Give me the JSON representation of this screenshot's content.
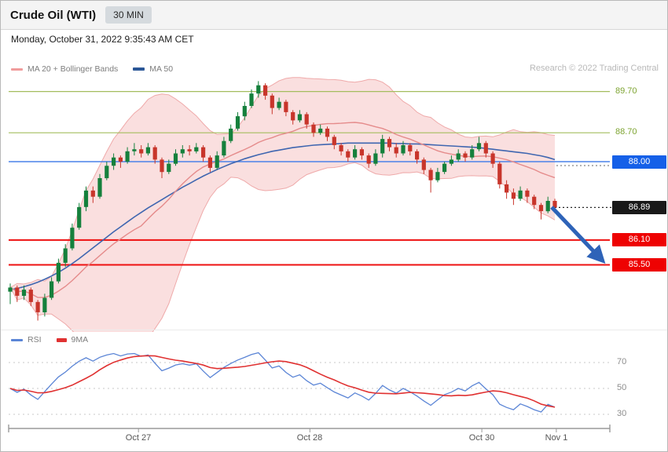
{
  "header": {
    "title": "Crude Oil (WTI)",
    "timeframe": "30 MIN",
    "datetime": "Monday, October 31, 2022 9:35:43 AM CET"
  },
  "watermark": "Research © 2022 Trading Central",
  "legend_main": {
    "ma20_label": "MA 20 + Bollinger Bands",
    "ma50_label": "MA 50"
  },
  "legend_rsi": {
    "rsi_label": "RSI",
    "ma9_label": "9MA"
  },
  "colors": {
    "up": "#15803c",
    "down": "#c8352b",
    "band_fill": "rgba(242,178,178,0.42)",
    "band_edge": "rgba(236,158,158,0.85)",
    "ma20": "#e58b8b",
    "ma50": "#3f66b0",
    "level_green": "#a4bd5e",
    "level_green_text": "#7ea432",
    "level_blue": "#4a82e8",
    "level_blue_box": "#1560e8",
    "level_red": "#ee1111",
    "support_box": "#ee0202",
    "current_box": "#191919",
    "arrow": "#2e63b8",
    "rsi_line": "#5b85d6",
    "rsi_ma": "#e03131"
  },
  "chart_data": {
    "type": "candlestick",
    "instrument": "Crude Oil (WTI)",
    "interval": "30 MIN",
    "candle_format": [
      "open",
      "high",
      "low",
      "close"
    ],
    "candles": [
      [
        84.85,
        85.05,
        84.55,
        84.95
      ],
      [
        84.95,
        85.0,
        84.6,
        84.75
      ],
      [
        84.75,
        85.0,
        84.65,
        84.9
      ],
      [
        84.9,
        84.95,
        84.5,
        84.6
      ],
      [
        84.6,
        84.65,
        84.15,
        84.35
      ],
      [
        84.35,
        84.8,
        84.25,
        84.7
      ],
      [
        84.7,
        85.2,
        84.65,
        85.1
      ],
      [
        85.1,
        85.65,
        85.05,
        85.55
      ],
      [
        85.55,
        86.0,
        85.45,
        85.9
      ],
      [
        85.9,
        86.5,
        85.85,
        86.4
      ],
      [
        86.4,
        87.0,
        86.35,
        86.9
      ],
      [
        86.9,
        87.4,
        86.8,
        87.3
      ],
      [
        87.3,
        87.4,
        87.0,
        87.15
      ],
      [
        87.15,
        87.7,
        87.1,
        87.6
      ],
      [
        87.6,
        88.0,
        87.55,
        87.9
      ],
      [
        87.9,
        88.2,
        87.8,
        88.1
      ],
      [
        88.1,
        88.15,
        87.85,
        88.0
      ],
      [
        88.0,
        88.35,
        87.95,
        88.25
      ],
      [
        88.25,
        88.45,
        88.15,
        88.3
      ],
      [
        88.3,
        88.4,
        88.1,
        88.2
      ],
      [
        88.2,
        88.45,
        88.15,
        88.35
      ],
      [
        88.35,
        88.4,
        87.95,
        88.05
      ],
      [
        88.05,
        88.1,
        87.6,
        87.75
      ],
      [
        87.75,
        88.05,
        87.7,
        87.95
      ],
      [
        87.95,
        88.3,
        87.9,
        88.2
      ],
      [
        88.2,
        88.4,
        88.1,
        88.3
      ],
      [
        88.3,
        88.4,
        88.15,
        88.25
      ],
      [
        88.25,
        88.45,
        88.2,
        88.35
      ],
      [
        88.35,
        88.4,
        88.0,
        88.1
      ],
      [
        88.1,
        88.15,
        87.75,
        87.85
      ],
      [
        87.85,
        88.25,
        87.8,
        88.15
      ],
      [
        88.15,
        88.6,
        88.1,
        88.5
      ],
      [
        88.5,
        88.9,
        88.45,
        88.8
      ],
      [
        88.8,
        89.2,
        88.75,
        89.1
      ],
      [
        89.1,
        89.45,
        89.0,
        89.35
      ],
      [
        89.35,
        89.75,
        89.3,
        89.65
      ],
      [
        89.65,
        89.95,
        89.55,
        89.85
      ],
      [
        89.85,
        89.9,
        89.5,
        89.6
      ],
      [
        89.6,
        89.65,
        89.15,
        89.3
      ],
      [
        89.3,
        89.55,
        89.25,
        89.45
      ],
      [
        89.45,
        89.5,
        89.1,
        89.2
      ],
      [
        89.2,
        89.25,
        88.9,
        89.0
      ],
      [
        89.0,
        89.25,
        88.95,
        89.15
      ],
      [
        89.15,
        89.2,
        88.8,
        88.9
      ],
      [
        88.9,
        88.95,
        88.6,
        88.7
      ],
      [
        88.7,
        88.9,
        88.65,
        88.8
      ],
      [
        88.8,
        88.85,
        88.5,
        88.6
      ],
      [
        88.6,
        88.65,
        88.3,
        88.4
      ],
      [
        88.4,
        88.45,
        88.15,
        88.25
      ],
      [
        88.25,
        88.3,
        88.0,
        88.1
      ],
      [
        88.1,
        88.4,
        88.05,
        88.3
      ],
      [
        88.3,
        88.35,
        88.05,
        88.15
      ],
      [
        88.15,
        88.2,
        87.85,
        87.95
      ],
      [
        87.95,
        88.3,
        87.9,
        88.2
      ],
      [
        88.2,
        88.65,
        88.1,
        88.55
      ],
      [
        88.55,
        88.6,
        88.25,
        88.35
      ],
      [
        88.35,
        88.45,
        88.1,
        88.2
      ],
      [
        88.2,
        88.5,
        88.15,
        88.4
      ],
      [
        88.4,
        88.45,
        88.15,
        88.25
      ],
      [
        88.25,
        88.3,
        87.95,
        88.05
      ],
      [
        88.05,
        88.1,
        87.7,
        87.8
      ],
      [
        87.8,
        87.85,
        87.25,
        87.55
      ],
      [
        87.55,
        87.85,
        87.5,
        87.75
      ],
      [
        87.75,
        88.0,
        87.7,
        87.95
      ],
      [
        87.95,
        88.15,
        87.9,
        88.05
      ],
      [
        88.05,
        88.3,
        88.0,
        88.2
      ],
      [
        88.2,
        88.25,
        88.0,
        88.1
      ],
      [
        88.1,
        88.4,
        88.05,
        88.3
      ],
      [
        88.3,
        88.6,
        88.25,
        88.45
      ],
      [
        88.45,
        88.5,
        88.1,
        88.2
      ],
      [
        88.2,
        88.25,
        87.85,
        87.95
      ],
      [
        87.95,
        88.0,
        87.35,
        87.45
      ],
      [
        87.45,
        87.55,
        87.1,
        87.25
      ],
      [
        87.25,
        87.35,
        86.95,
        87.1
      ],
      [
        87.1,
        87.4,
        87.05,
        87.3
      ],
      [
        87.3,
        87.35,
        87.0,
        87.15
      ],
      [
        87.15,
        87.2,
        86.85,
        86.95
      ],
      [
        86.95,
        87.0,
        86.6,
        86.8
      ],
      [
        86.8,
        87.15,
        86.75,
        87.05
      ],
      [
        87.05,
        87.1,
        86.8,
        86.89
      ]
    ],
    "ma50": [
      84.9,
      84.93,
      84.97,
      85.02,
      85.08,
      85.15,
      85.23,
      85.32,
      85.42,
      85.53,
      85.65,
      85.78,
      85.91,
      86.04,
      86.17,
      86.3,
      86.42,
      86.54,
      86.66,
      86.77,
      86.88,
      86.98,
      87.08,
      87.18,
      87.28,
      87.38,
      87.47,
      87.56,
      87.65,
      87.73,
      87.81,
      87.88,
      87.95,
      88.01,
      88.07,
      88.12,
      88.17,
      88.21,
      88.25,
      88.28,
      88.31,
      88.34,
      88.36,
      88.38,
      88.4,
      88.41,
      88.42,
      88.43,
      88.44,
      88.45,
      88.45,
      88.45,
      88.45,
      88.45,
      88.45,
      88.45,
      88.44,
      88.44,
      88.43,
      88.43,
      88.42,
      88.41,
      88.4,
      88.39,
      88.38,
      88.37,
      88.36,
      88.35,
      88.34,
      88.32,
      88.3,
      88.28,
      88.26,
      88.24,
      88.22,
      88.2,
      88.17,
      88.14,
      88.1,
      88.05
    ],
    "levels": [
      {
        "price": 89.7,
        "label": "89.70",
        "kind": "resistance_green"
      },
      {
        "price": 88.7,
        "label": "88.70",
        "kind": "resistance_green"
      },
      {
        "price": 88.0,
        "label": "88.00",
        "kind": "pivot_blue"
      },
      {
        "price": 86.89,
        "label": "86.89",
        "kind": "current_price"
      },
      {
        "price": 86.1,
        "label": "86.10",
        "kind": "support_red"
      },
      {
        "price": 85.5,
        "label": "85.50",
        "kind": "support_red"
      }
    ],
    "current_price": 86.89,
    "forecast_arrow": {
      "direction": "down",
      "from_price": 86.89,
      "target_zone": [
        86.1,
        85.5
      ]
    },
    "indicators": {
      "overlays": [
        "MA 20 + Bollinger Bands",
        "MA 50"
      ],
      "lower": {
        "name": "RSI",
        "period": 14,
        "signal_ma": 9,
        "gridlines": [
          70,
          50,
          30
        ]
      }
    },
    "x_labels": [
      {
        "label": "Oct 27",
        "pos": 0.216
      },
      {
        "label": "Oct 28",
        "pos": 0.501
      },
      {
        "label": "Oct 30",
        "pos": 0.787
      },
      {
        "label": "Nov 1",
        "pos": 0.911
      }
    ]
  }
}
